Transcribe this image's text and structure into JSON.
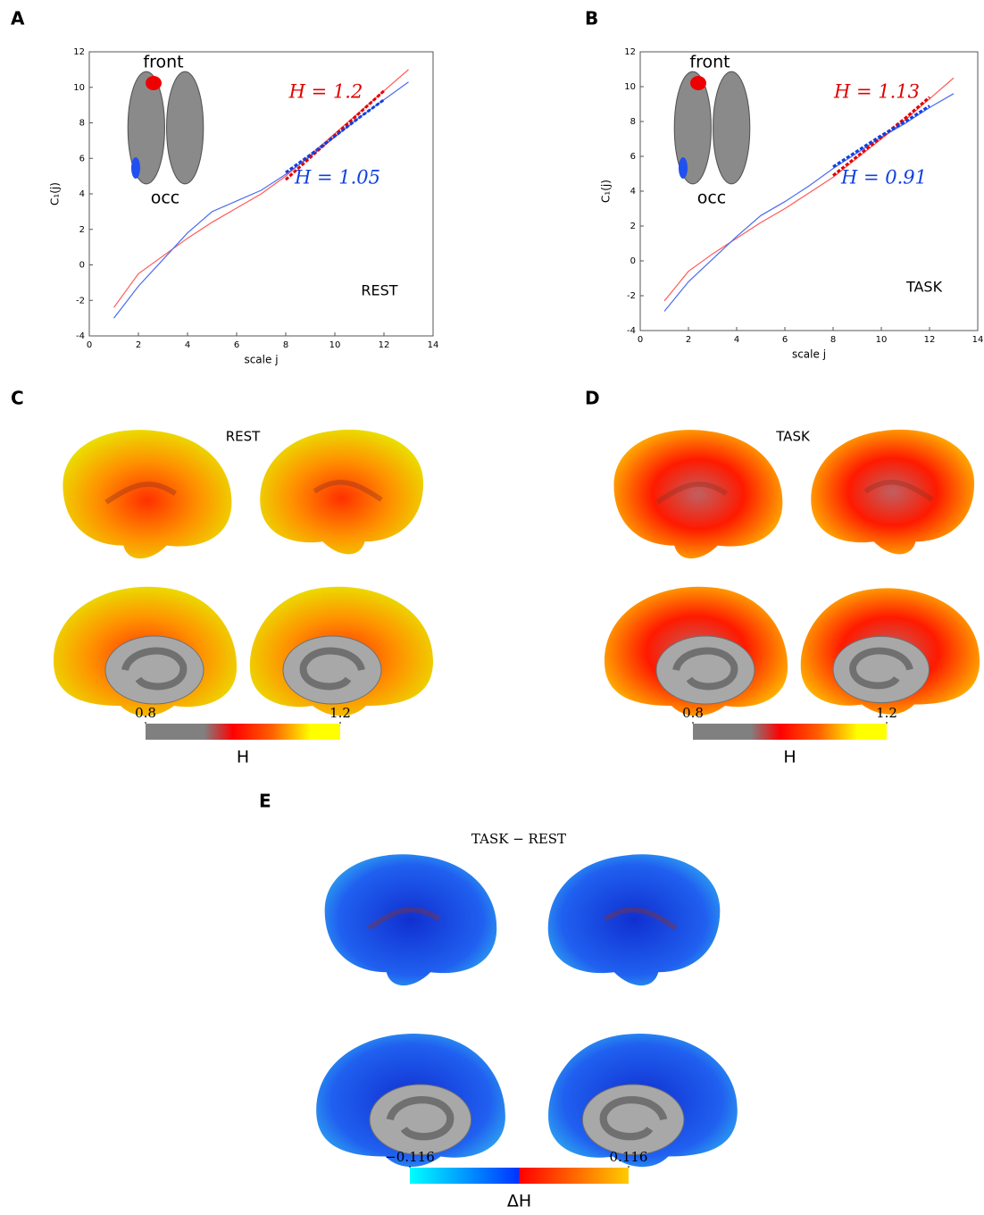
{
  "chart_data": [
    {
      "type": "line",
      "xlabel": "scale j",
      "ylabel": "C₁(j)",
      "x": [
        1,
        2,
        3,
        4,
        5,
        6,
        7,
        8,
        9,
        10,
        11,
        12,
        13
      ],
      "series": [
        {
          "color": "#ff5a5a",
          "values": [
            -2.4,
            -0.5,
            0.5,
            1.5,
            2.4,
            3.2,
            4,
            5,
            6.2,
            7.4,
            8.6,
            9.8,
            11
          ]
        },
        {
          "color": "#4a6cf0",
          "values": [
            -3,
            -1.2,
            0.3,
            1.8,
            3,
            3.6,
            4.2,
            5.1,
            6.1,
            7.2,
            8.3,
            9.3,
            10.3
          ]
        },
        {
          "color": "#e00000",
          "dashed": true,
          "values": [
            null,
            null,
            null,
            null,
            null,
            null,
            null,
            4.8,
            6.05,
            7.3,
            8.55,
            9.8,
            null
          ]
        },
        {
          "color": "#1040e0",
          "dashed": true,
          "values": [
            null,
            null,
            null,
            null,
            null,
            null,
            null,
            5.2,
            6.2,
            7.25,
            8.3,
            9.3,
            null
          ]
        }
      ],
      "annotations": [
        {
          "text": "front",
          "color": "#000000"
        },
        {
          "text": "occ",
          "color": "#000000"
        },
        {
          "text": "H = 1.2",
          "color": "#e00000"
        },
        {
          "text": "H = 1.05",
          "color": "#1040e0"
        },
        {
          "text": "REST",
          "color": "#000000"
        }
      ],
      "xlim": [
        0,
        14
      ],
      "xticks": [
        0,
        2,
        4,
        6,
        8,
        10,
        12,
        14
      ],
      "ylim": [
        -4,
        12
      ],
      "yticks": [
        -4,
        -2,
        0,
        2,
        4,
        6,
        8,
        10,
        12
      ]
    },
    {
      "type": "line",
      "xlabel": "scale j",
      "ylabel": "C₁(j)",
      "x": [
        1,
        2,
        3,
        4,
        5,
        6,
        7,
        8,
        9,
        10,
        11,
        12,
        13
      ],
      "series": [
        {
          "color": "#ff5a5a",
          "values": [
            -2.3,
            -0.6,
            0.4,
            1.3,
            2.2,
            3,
            3.9,
            4.8,
            5.9,
            7,
            8.1,
            9.3,
            10.5
          ]
        },
        {
          "color": "#4a6cf0",
          "values": [
            -2.9,
            -1.2,
            0.1,
            1.4,
            2.6,
            3.4,
            4.3,
            5.3,
            6.2,
            7.1,
            7.9,
            8.8,
            9.6
          ]
        },
        {
          "color": "#e00000",
          "dashed": true,
          "values": [
            null,
            null,
            null,
            null,
            null,
            null,
            null,
            4.9,
            6.0,
            7.1,
            8.2,
            9.4,
            null
          ]
        },
        {
          "color": "#1040e0",
          "dashed": true,
          "values": [
            null,
            null,
            null,
            null,
            null,
            null,
            null,
            5.4,
            6.3,
            7.2,
            8.0,
            8.9,
            null
          ]
        }
      ],
      "annotations": [
        {
          "text": "front",
          "color": "#000000"
        },
        {
          "text": "occ",
          "color": "#000000"
        },
        {
          "text": "H = 1.13",
          "color": "#e00000"
        },
        {
          "text": "H = 0.91",
          "color": "#1040e0"
        },
        {
          "text": "TASK",
          "color": "#000000"
        }
      ],
      "xlim": [
        0,
        14
      ],
      "xticks": [
        0,
        2,
        4,
        6,
        8,
        10,
        12,
        14
      ],
      "ylim": [
        -4,
        12
      ],
      "yticks": [
        -4,
        -2,
        0,
        2,
        4,
        6,
        8,
        10,
        12
      ]
    }
  ],
  "panel_labels": [
    "A",
    "B",
    "C",
    "D",
    "E"
  ],
  "maps": [
    {
      "title": "REST",
      "colorbar": {
        "label": "H",
        "clim": [
          0.8,
          1.2
        ],
        "ticks": [
          0.8,
          1.2
        ]
      }
    },
    {
      "title": "TASK",
      "colorbar": {
        "label": "H",
        "clim": [
          0.8,
          1.2
        ],
        "ticks": [
          0.8,
          1.2
        ]
      }
    },
    {
      "title": "TASK − REST",
      "colorbar": {
        "label": "ΔH",
        "clim": [
          -0.116,
          0.116
        ],
        "ticks": [
          {
            "value": -0.116,
            "label": "−0.116"
          },
          0.116
        ]
      }
    }
  ]
}
